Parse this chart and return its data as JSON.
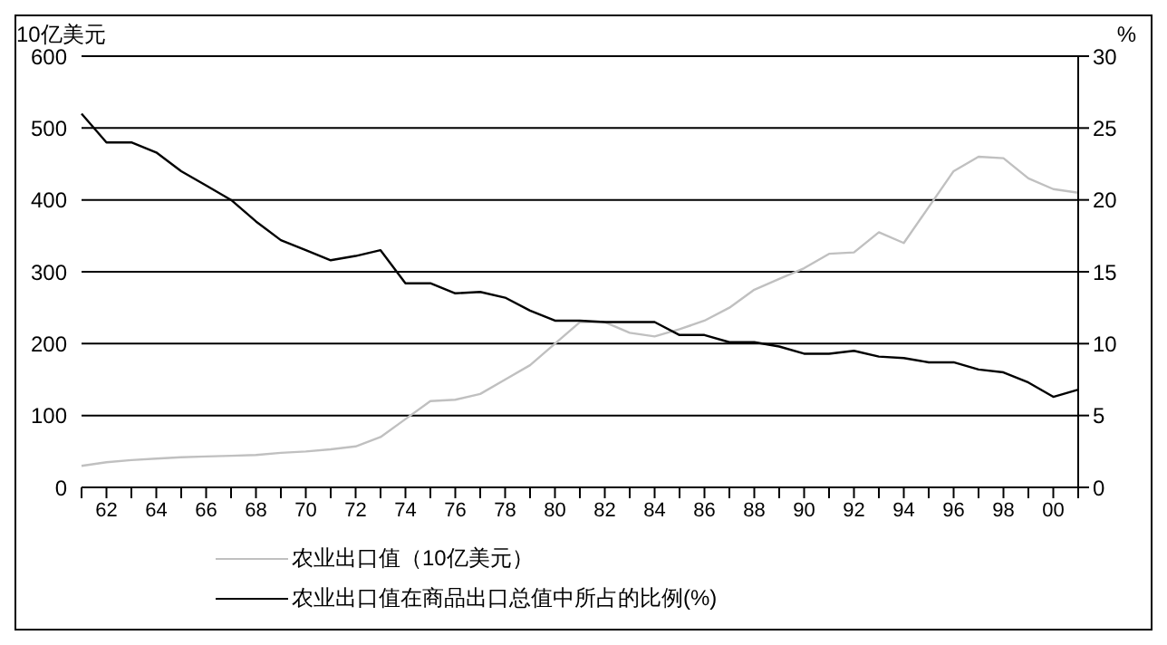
{
  "chart_data": {
    "type": "line",
    "ylabel": "10亿美元",
    "y2label": "%",
    "categories": [
      null,
      "62",
      null,
      "64",
      null,
      "66",
      null,
      "68",
      null,
      "70",
      null,
      "72",
      null,
      "74",
      null,
      "76",
      null,
      "78",
      null,
      "80",
      null,
      "82",
      null,
      "84",
      null,
      "86",
      null,
      "88",
      null,
      "90",
      null,
      "92",
      null,
      "94",
      null,
      "96",
      null,
      "98",
      null,
      "00",
      null
    ],
    "series": [
      {
        "name": "农业出口值（10亿美元）",
        "color": "#c0c0c0",
        "values": [
          30,
          35,
          38,
          40,
          42,
          43,
          44,
          45,
          48,
          50,
          53,
          57,
          70,
          95,
          120,
          122,
          130,
          150,
          170,
          200,
          230,
          230,
          215,
          210,
          220,
          232,
          250,
          275,
          290,
          305,
          325,
          327,
          355,
          340,
          390,
          440,
          460,
          458,
          430,
          415,
          410
        ]
      },
      {
        "name": "农业出口值在商品出口总值中所占的比例(%)",
        "color": "#000000",
        "axis": "y2",
        "values": [
          26,
          24,
          24,
          23.3,
          22,
          21,
          20,
          18.5,
          17.2,
          16.5,
          15.8,
          16.1,
          16.5,
          14.2,
          14.2,
          13.5,
          13.6,
          13.2,
          12.3,
          11.6,
          11.6,
          11.5,
          11.5,
          11.5,
          10.6,
          10.6,
          10.1,
          10.1,
          9.8,
          9.3,
          9.3,
          9.5,
          9.1,
          9,
          8.7,
          8.7,
          8.2,
          8,
          7.3,
          6.3,
          6.8
        ]
      }
    ],
    "ylim": [
      0,
      600
    ],
    "yticks": [
      0,
      100,
      200,
      300,
      400,
      500,
      600
    ],
    "y2lim": [
      0,
      30
    ],
    "y2ticks": [
      0,
      5,
      10,
      15,
      20,
      25,
      30
    ],
    "grid": "y",
    "legend": "bottom",
    "marker": "none"
  }
}
